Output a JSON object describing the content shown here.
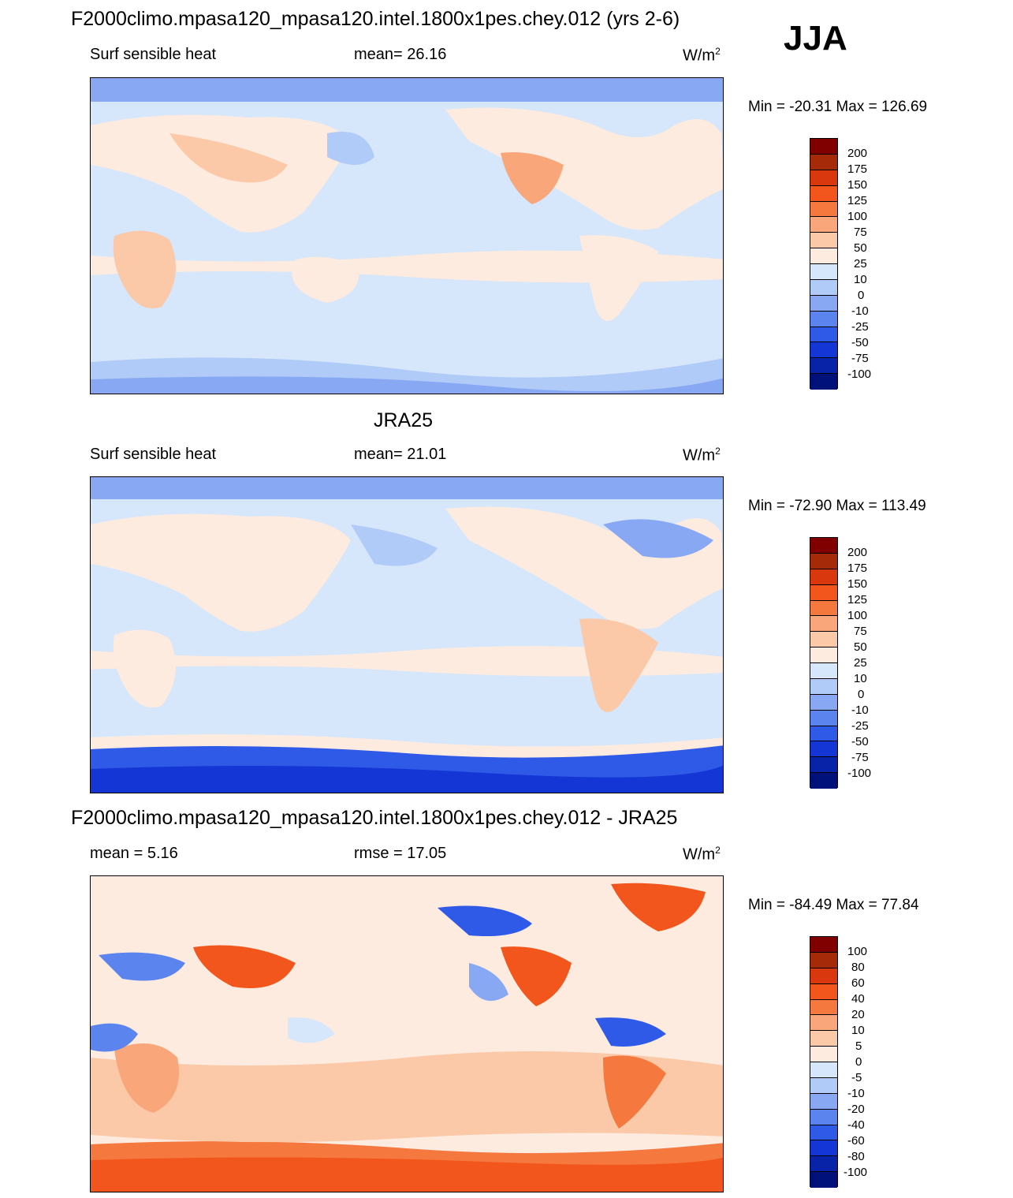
{
  "season": "JJA",
  "units_base": "W/m",
  "units_exp": "2",
  "panels": [
    {
      "title": "F2000climo.mpasa120_mpasa120.intel.1800x1pes.chey.012 (yrs 2-6)",
      "left_label": "Surf sensible heat",
      "center_label": "mean=  26.16",
      "minmax": "Min = -20.31 Max = 126.69",
      "colorbar_labels": [
        "200",
        "175",
        "150",
        "125",
        "100",
        "75",
        "50",
        "25",
        "10",
        "0",
        "-10",
        "-25",
        "-50",
        "-75",
        "-100"
      ]
    },
    {
      "title": "JRA25",
      "left_label": "Surf sensible heat",
      "center_label": "mean=  21.01",
      "minmax": "Min = -72.90 Max = 113.49",
      "colorbar_labels": [
        "200",
        "175",
        "150",
        "125",
        "100",
        "75",
        "50",
        "25",
        "10",
        "0",
        "-10",
        "-25",
        "-50",
        "-75",
        "-100"
      ]
    },
    {
      "title": "F2000climo.mpasa120_mpasa120.intel.1800x1pes.chey.012 - JRA25",
      "left_label": "mean =    5.16",
      "center_label": "rmse =  17.05",
      "minmax": "Min = -84.49 Max =  77.84",
      "colorbar_labels": [
        "100",
        "80",
        "60",
        "40",
        "20",
        "10",
        "5",
        "0",
        "-5",
        "-10",
        "-20",
        "-40",
        "-60",
        "-80",
        "-100"
      ]
    }
  ],
  "colors": {
    "colorbar": [
      "#800000",
      "#a52a0a",
      "#d9380f",
      "#f2561c",
      "#f5793f",
      "#f9a67b",
      "#fbc8a8",
      "#fdebdf",
      "#d6e6fb",
      "#b0cbf7",
      "#88a8f4",
      "#5b84ef",
      "#2f5ae8",
      "#1436d4",
      "#0823a8",
      "#00117a"
    ]
  }
}
